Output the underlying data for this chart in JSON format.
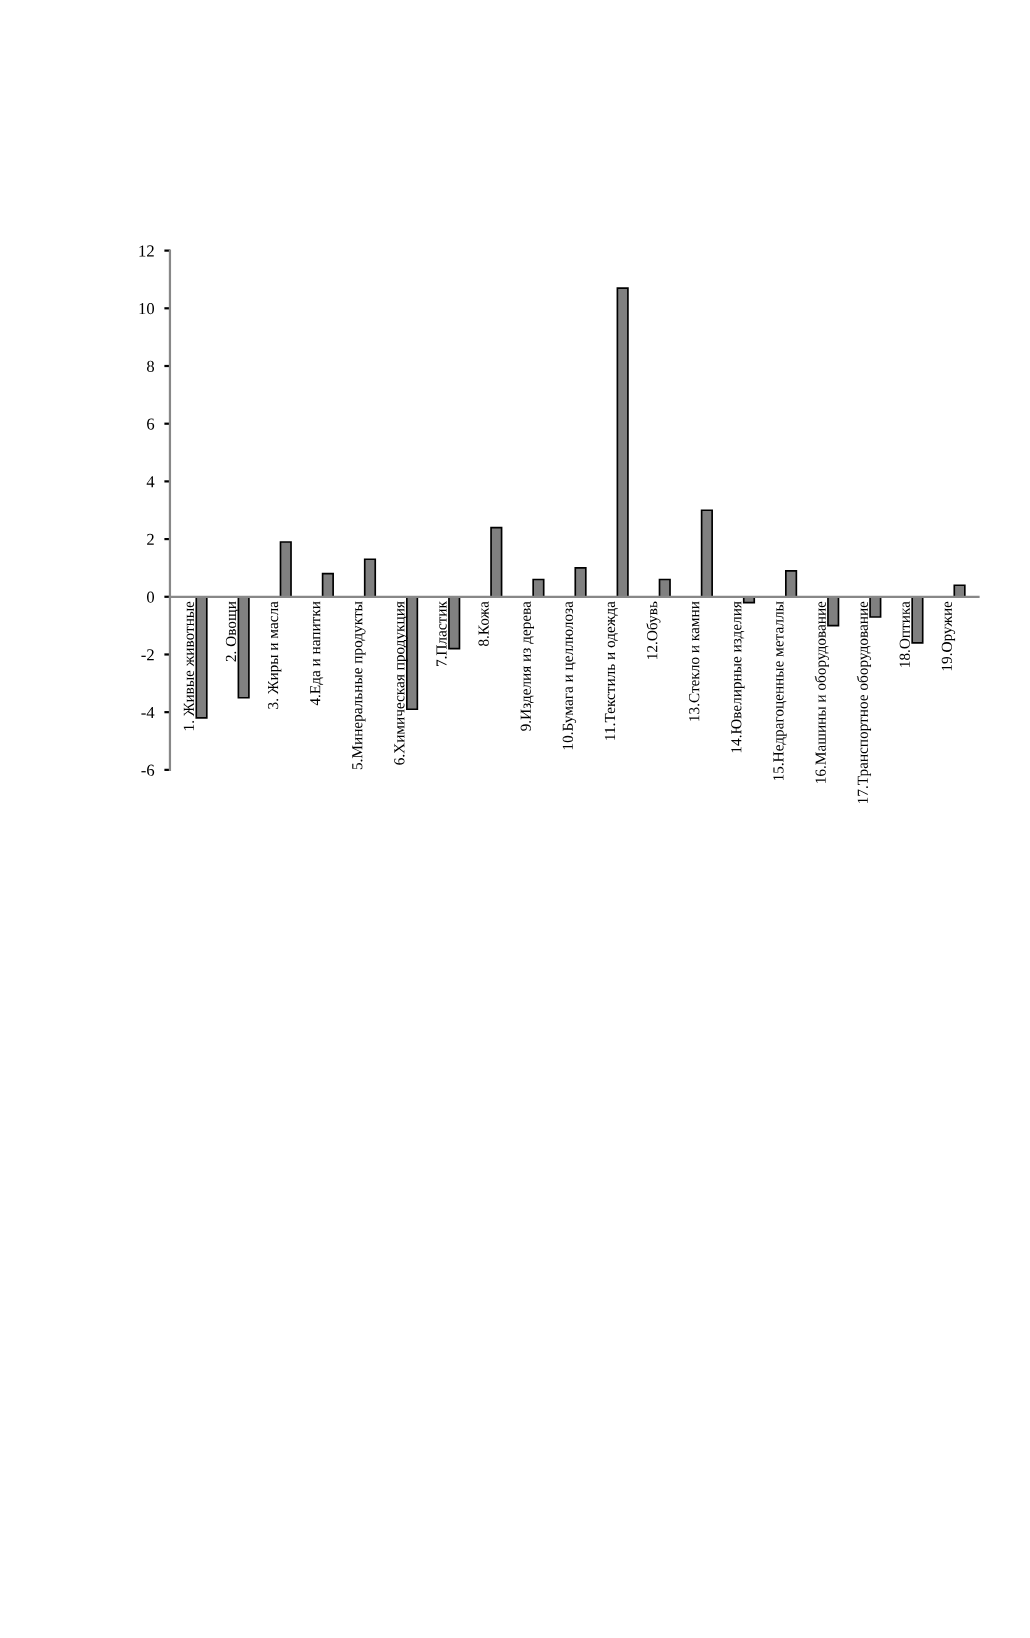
{
  "chart_data": {
    "type": "bar",
    "categories": [
      "1. Живые животные",
      "2. Овощи",
      "3. Жиры и масла",
      "4.Еда и напитки",
      "5.Минеральные продукты",
      "6.Химическая продукция",
      "7.Пластик",
      "8.Кожа",
      "9.Изделия из дерева",
      "10.Бумага и целлюлоза",
      "11.Текстиль и одежда",
      "12.Обувь",
      "13.Стекло и камни",
      "14.Ювелирные изделия",
      "15.Недрагоценные металлы",
      "16.Машины и оборудование",
      "17.Транспортное оборудование",
      "18.Оптика",
      "19.Оружие"
    ],
    "values": [
      -4.2,
      -3.5,
      1.9,
      0.8,
      1.3,
      -3.9,
      -1.8,
      2.4,
      0.6,
      1.0,
      10.7,
      0.6,
      3.0,
      -0.2,
      0.9,
      -1.0,
      -0.7,
      -1.6,
      0.4
    ],
    "color": "#808080",
    "ylim": [
      -6,
      12
    ],
    "yticks": [
      -6,
      -4,
      -2,
      0,
      2,
      4,
      6,
      8,
      10,
      12
    ],
    "grid": false,
    "legend": false
  }
}
